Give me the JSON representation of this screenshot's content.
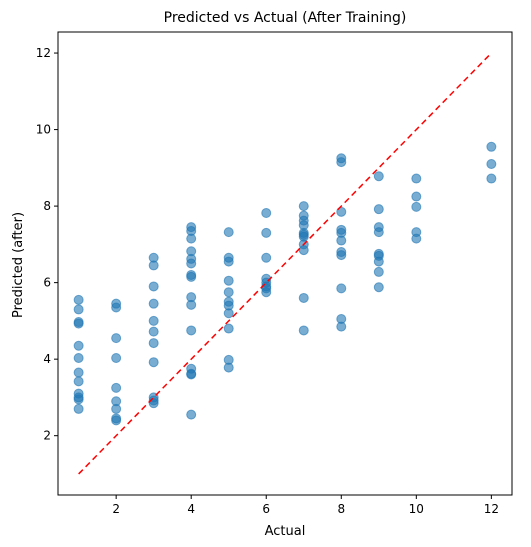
{
  "chart_data": {
    "type": "scatter",
    "title": "Predicted vs Actual (After Training)",
    "xlabel": "Actual",
    "ylabel": "Predicted (after)",
    "xlim": [
      0.45,
      12.55
    ],
    "ylim": [
      0.45,
      12.55
    ],
    "xticks": [
      2,
      4,
      6,
      8,
      10,
      12
    ],
    "yticks": [
      2,
      4,
      6,
      8,
      10,
      12
    ],
    "grid": false,
    "point_color": "#1f77b4",
    "point_alpha": 0.6,
    "series": [
      {
        "points": [
          [
            1,
            5.55
          ],
          [
            1,
            5.3
          ],
          [
            1,
            4.97
          ],
          [
            1,
            4.93
          ],
          [
            1,
            4.35
          ],
          [
            1,
            4.03
          ],
          [
            1,
            3.65
          ],
          [
            1,
            3.42
          ],
          [
            1,
            3.1
          ],
          [
            1,
            3.0
          ],
          [
            1,
            2.95
          ],
          [
            1,
            2.7
          ],
          [
            2,
            5.45
          ],
          [
            2,
            5.35
          ],
          [
            2,
            4.55
          ],
          [
            2,
            4.03
          ],
          [
            2,
            3.25
          ],
          [
            2,
            2.9
          ],
          [
            2,
            2.7
          ],
          [
            2,
            2.45
          ],
          [
            2,
            2.4
          ],
          [
            3,
            6.65
          ],
          [
            3,
            6.45
          ],
          [
            3,
            5.9
          ],
          [
            3,
            5.45
          ],
          [
            3,
            5.0
          ],
          [
            3,
            4.72
          ],
          [
            3,
            4.42
          ],
          [
            3,
            3.92
          ],
          [
            3,
            3.0
          ],
          [
            3,
            2.92
          ],
          [
            3,
            2.85
          ],
          [
            4,
            7.45
          ],
          [
            4,
            7.35
          ],
          [
            4,
            7.15
          ],
          [
            4,
            6.82
          ],
          [
            4,
            6.62
          ],
          [
            4,
            6.5
          ],
          [
            4,
            6.2
          ],
          [
            4,
            6.15
          ],
          [
            4,
            5.62
          ],
          [
            4,
            5.42
          ],
          [
            4,
            4.75
          ],
          [
            4,
            3.75
          ],
          [
            4,
            3.62
          ],
          [
            4,
            3.6
          ],
          [
            4,
            2.55
          ],
          [
            5,
            7.32
          ],
          [
            5,
            6.65
          ],
          [
            5,
            6.55
          ],
          [
            5,
            6.05
          ],
          [
            5,
            5.75
          ],
          [
            5,
            5.5
          ],
          [
            5,
            5.4
          ],
          [
            5,
            5.2
          ],
          [
            5,
            4.8
          ],
          [
            5,
            3.98
          ],
          [
            5,
            3.78
          ],
          [
            6,
            7.82
          ],
          [
            6,
            7.3
          ],
          [
            6,
            6.65
          ],
          [
            6,
            6.1
          ],
          [
            6,
            6.0
          ],
          [
            6,
            5.9
          ],
          [
            6,
            5.85
          ],
          [
            6,
            5.75
          ],
          [
            7,
            8.0
          ],
          [
            7,
            7.75
          ],
          [
            7,
            7.62
          ],
          [
            7,
            7.5
          ],
          [
            7,
            7.3
          ],
          [
            7,
            7.25
          ],
          [
            7,
            7.2
          ],
          [
            7,
            7.0
          ],
          [
            7,
            6.85
          ],
          [
            7,
            5.6
          ],
          [
            7,
            4.75
          ],
          [
            8,
            9.25
          ],
          [
            8,
            9.15
          ],
          [
            8,
            7.85
          ],
          [
            8,
            7.38
          ],
          [
            8,
            7.3
          ],
          [
            8,
            7.1
          ],
          [
            8,
            6.8
          ],
          [
            8,
            6.72
          ],
          [
            8,
            5.85
          ],
          [
            8,
            5.05
          ],
          [
            8,
            4.85
          ],
          [
            9,
            8.78
          ],
          [
            9,
            7.92
          ],
          [
            9,
            7.45
          ],
          [
            9,
            7.32
          ],
          [
            9,
            6.75
          ],
          [
            9,
            6.7
          ],
          [
            9,
            6.55
          ],
          [
            9,
            6.28
          ],
          [
            9,
            5.88
          ],
          [
            10,
            8.72
          ],
          [
            10,
            8.25
          ],
          [
            10,
            7.98
          ],
          [
            10,
            7.32
          ],
          [
            10,
            7.15
          ],
          [
            12,
            9.55
          ],
          [
            12,
            9.1
          ],
          [
            12,
            8.72
          ]
        ]
      }
    ],
    "reference_line": {
      "from": [
        1,
        1
      ],
      "to": [
        12,
        12
      ],
      "style": "dashed",
      "color": "#ff0000"
    }
  }
}
